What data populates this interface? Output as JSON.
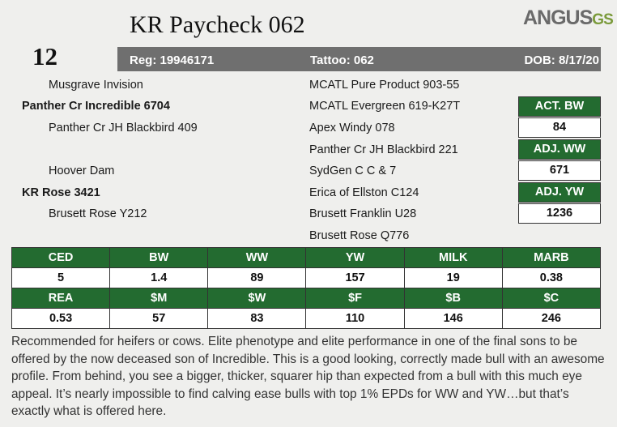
{
  "header": {
    "lot": "12",
    "title": "KR Paycheck 062",
    "logo": "ANGUS",
    "logo_suffix": "GS"
  },
  "info": {
    "reg": "Reg: 19946171",
    "tattoo": "Tattoo: 062",
    "dob": "DOB: 8/17/20"
  },
  "pedigree": {
    "left": [
      "Musgrave Invision",
      "Panther Cr Incredible 6704",
      "Panther Cr JH Blackbird 409",
      "Hoover Dam",
      "KR Rose 3421",
      "Brusett Rose Y212"
    ],
    "right": [
      "MCATL Pure Product 903-55",
      "MCATL Evergreen 619-K27T",
      "Apex Windy 078",
      "Panther Cr JH Blackbird 221",
      "SydGen C C & 7",
      "Erica of Ellston C124",
      "Brusett Franklin U28",
      "Brusett Rose Q776"
    ]
  },
  "weights": [
    {
      "label": "ACT. BW",
      "value": "84"
    },
    {
      "label": "ADJ. WW",
      "value": "671"
    },
    {
      "label": "ADJ. YW",
      "value": "1236"
    }
  ],
  "epd": {
    "rows": [
      [
        "CED",
        "BW",
        "WW",
        "YW",
        "MILK",
        "MARB"
      ],
      [
        "5",
        "1.4",
        "89",
        "157",
        "19",
        "0.38"
      ],
      [
        "REA",
        "$M",
        "$W",
        "$F",
        "$B",
        "$C"
      ],
      [
        "0.53",
        "57",
        "83",
        "110",
        "146",
        "246"
      ]
    ]
  },
  "description": "Recommended for heifers or cows. Elite phenotype and elite performance in one of the final sons to be offered by the now deceased son of Incredible. This is a good looking, correctly made bull with an awesome profile. From behind, you see a bigger, thicker, squarer hip than expected from a bull with this much eye appeal.  It’s nearly impossible to find calving ease bulls with top 1% EPDs for WW and YW…but that’s exactly what is offered here."
}
